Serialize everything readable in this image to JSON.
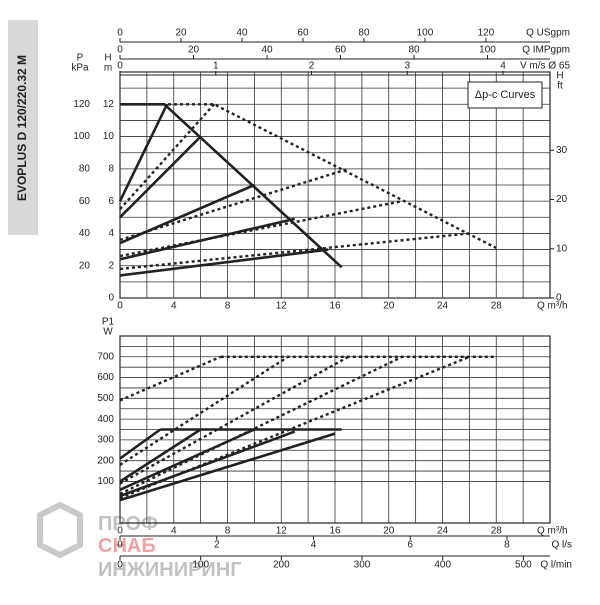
{
  "title": "EVOPLUS D 120/220.32 M",
  "watermark": {
    "line1": "ПРОФ",
    "line2": "СНАБ",
    "line3": "ИНЖИНИРИНГ"
  },
  "chart_data": [
    {
      "type": "line",
      "legend_text": "Δp-c Curves",
      "xlabel": "Q m³/h",
      "xlim": [
        0,
        32
      ],
      "xticks": [
        0,
        4,
        8,
        12,
        16,
        20,
        24,
        28
      ],
      "ylabel": "H",
      "yunit": "m",
      "ylim": [
        0,
        14
      ],
      "yticks": [
        0,
        2,
        4,
        6,
        8,
        10,
        12
      ],
      "grid": true,
      "top_axes": [
        {
          "label": "Q USgpm",
          "lim": [
            0,
            141
          ],
          "ticks": [
            0,
            20,
            40,
            60,
            80,
            100,
            120
          ]
        },
        {
          "label": "Q IMPgpm",
          "lim": [
            0,
            117
          ],
          "ticks": [
            0,
            20,
            40,
            60,
            80,
            100
          ]
        },
        {
          "label": "V m/s Ø 65",
          "lim": [
            0,
            4.49
          ],
          "ticks": [
            0,
            1,
            2,
            3,
            4
          ]
        }
      ],
      "left_axis": {
        "label": "P",
        "unit": "kPa",
        "lim": [
          0,
          140
        ],
        "ticks": [
          20,
          40,
          60,
          80,
          100,
          120
        ]
      },
      "right_axis": {
        "label": "H",
        "unit": "ft",
        "lim": [
          0,
          45.9
        ],
        "ticks": [
          0,
          10,
          20,
          30
        ]
      },
      "series": [
        {
          "color": "#222222",
          "style": "solid",
          "x": [
            0,
            3.3,
            16.5
          ],
          "values": [
            12,
            12,
            1.9
          ]
        },
        {
          "color": "#222222",
          "style": "solid",
          "x": [
            0,
            3.5
          ],
          "values": [
            6,
            12
          ]
        },
        {
          "color": "#222222",
          "style": "solid",
          "x": [
            0,
            6
          ],
          "values": [
            5,
            10
          ]
        },
        {
          "color": "#222222",
          "style": "solid",
          "x": [
            0,
            10
          ],
          "values": [
            3.4,
            7
          ]
        },
        {
          "color": "#222222",
          "style": "solid",
          "x": [
            0,
            13
          ],
          "values": [
            2.4,
            4.9
          ]
        },
        {
          "color": "#222222",
          "style": "solid",
          "x": [
            0,
            15.5
          ],
          "values": [
            1.4,
            3
          ]
        },
        {
          "color": "#222222",
          "style": "dotted",
          "x": [
            0,
            7,
            28
          ],
          "values": [
            12,
            12,
            3.1
          ]
        },
        {
          "color": "#222222",
          "style": "dotted",
          "x": [
            0,
            7
          ],
          "values": [
            5.5,
            12
          ]
        },
        {
          "color": "#222222",
          "style": "dotted",
          "x": [
            0,
            17
          ],
          "values": [
            3.6,
            8
          ]
        },
        {
          "color": "#222222",
          "style": "dotted",
          "x": [
            0,
            21
          ],
          "values": [
            2.6,
            6
          ]
        },
        {
          "color": "#222222",
          "style": "dotted",
          "x": [
            0,
            26
          ],
          "values": [
            1.8,
            4
          ]
        }
      ]
    },
    {
      "type": "line",
      "xlabel": "Q m³/h",
      "xlim": [
        0,
        32
      ],
      "xticks": [
        0,
        4,
        8,
        12,
        16,
        20,
        24,
        28
      ],
      "ylabel": "P1",
      "yunit": "W",
      "ylim": [
        -100,
        800
      ],
      "yticks": [
        100,
        200,
        300,
        400,
        500,
        600,
        700
      ],
      "grid": true,
      "bottom_axes": [
        {
          "label": "Q l/s",
          "lim": [
            0,
            8.89
          ],
          "ticks": [
            0,
            2,
            4,
            6,
            8
          ]
        },
        {
          "label": "Q l/min",
          "lim": [
            0,
            533
          ],
          "ticks": [
            0,
            100,
            200,
            300,
            400,
            500
          ]
        }
      ],
      "series": [
        {
          "color": "#222222",
          "style": "solid",
          "x": [
            3,
            16.5
          ],
          "values": [
            350,
            350
          ]
        },
        {
          "color": "#222222",
          "style": "solid",
          "x": [
            0,
            3
          ],
          "values": [
            210,
            350
          ]
        },
        {
          "color": "#222222",
          "style": "solid",
          "x": [
            0,
            6
          ],
          "values": [
            100,
            350
          ]
        },
        {
          "color": "#222222",
          "style": "solid",
          "x": [
            0,
            10
          ],
          "values": [
            60,
            350
          ]
        },
        {
          "color": "#222222",
          "style": "solid",
          "x": [
            0,
            13
          ],
          "values": [
            30,
            340
          ]
        },
        {
          "color": "#222222",
          "style": "solid",
          "x": [
            0,
            16
          ],
          "values": [
            10,
            330
          ]
        },
        {
          "color": "#222222",
          "style": "dotted",
          "x": [
            7.5,
            28
          ],
          "values": [
            700,
            700
          ]
        },
        {
          "color": "#222222",
          "style": "dotted",
          "x": [
            0,
            7.5
          ],
          "values": [
            490,
            700
          ]
        },
        {
          "color": "#222222",
          "style": "dotted",
          "x": [
            0,
            12.5
          ],
          "values": [
            180,
            700
          ]
        },
        {
          "color": "#222222",
          "style": "dotted",
          "x": [
            0,
            17
          ],
          "values": [
            90,
            700
          ]
        },
        {
          "color": "#222222",
          "style": "dotted",
          "x": [
            0,
            21
          ],
          "values": [
            40,
            700
          ]
        },
        {
          "color": "#222222",
          "style": "dotted",
          "x": [
            0,
            26
          ],
          "values": [
            20,
            700
          ]
        }
      ]
    }
  ]
}
